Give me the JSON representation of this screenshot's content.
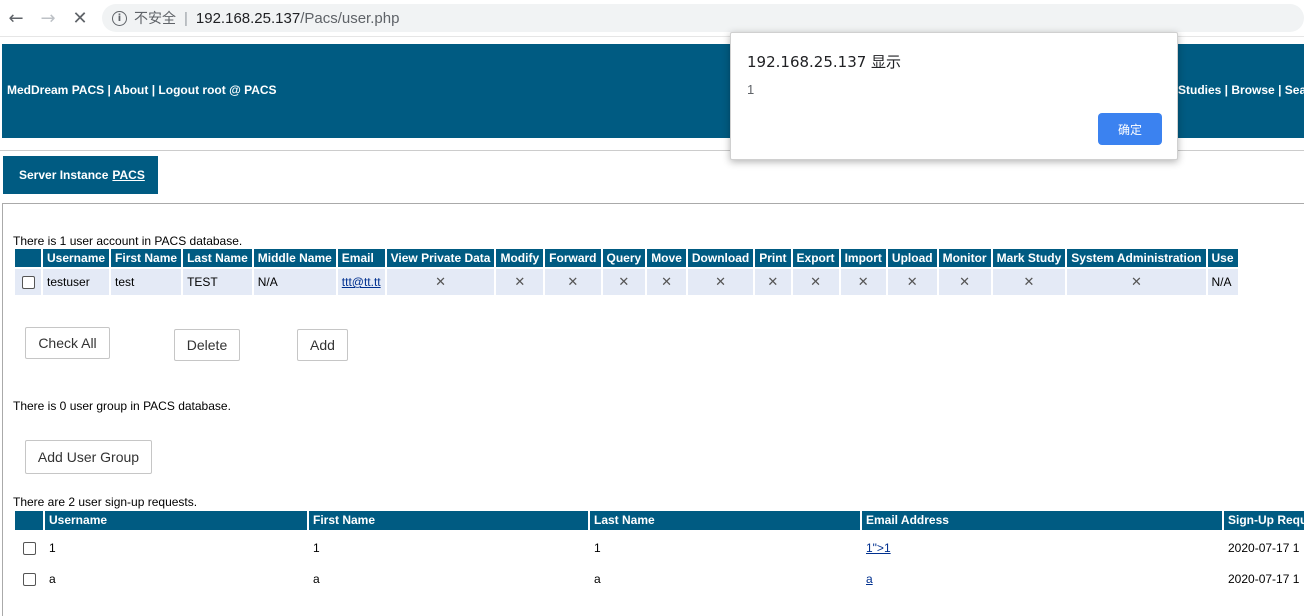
{
  "browser": {
    "back_glyph": "←",
    "forward_glyph": "→",
    "stop_glyph": "✕",
    "info_glyph": "i",
    "security_label": "不安全",
    "separator": "|",
    "url_host": "192.168.25.137",
    "url_path": "/Pacs/user.php"
  },
  "header": {
    "left_links": [
      "MedDream PACS",
      "About",
      "Logout root @ PACS"
    ],
    "right_links": [
      "Studies",
      "Browse",
      "Sea"
    ],
    "link_separator": " | "
  },
  "tab": {
    "prefix": "Server Instance",
    "name": "PACS"
  },
  "users": {
    "caption": "There is 1 user account in PACS database.",
    "columns": [
      "Username",
      "First Name",
      "Last Name",
      "Middle Name",
      "Email",
      "View Private Data",
      "Modify",
      "Forward",
      "Query",
      "Move",
      "Download",
      "Print",
      "Export",
      "Import",
      "Upload",
      "Monitor",
      "Mark Study",
      "System Administration",
      "Use"
    ],
    "rows": [
      {
        "username": "testuser",
        "first_name": "test",
        "last_name": "TEST",
        "middle_name": "N/A",
        "email": "ttt@tt.tt",
        "permissions": [
          "✕",
          "✕",
          "✕",
          "✕",
          "✕",
          "✕",
          "✕",
          "✕",
          "✕",
          "✕",
          "✕",
          "✕",
          "✕"
        ],
        "last": "N/A"
      }
    ]
  },
  "buttons": {
    "check_all": "Check All",
    "delete": "Delete",
    "add": "Add",
    "add_group": "Add User Group"
  },
  "groups": {
    "caption": "There is 0 user group in PACS database."
  },
  "signups": {
    "caption": "There are 2 user sign-up requests.",
    "columns": [
      "Username",
      "First Name",
      "Last Name",
      "Email Address",
      "Sign-Up Requ"
    ],
    "rows": [
      {
        "username": "1",
        "first_name": "1",
        "last_name": "1",
        "email": "1\">1",
        "date": "2020-07-17 1"
      },
      {
        "username": "a",
        "first_name": "a",
        "last_name": "a",
        "email": "a",
        "date": "2020-07-17 1"
      }
    ]
  },
  "dialog": {
    "title": "192.168.25.137 显示",
    "message": "1",
    "ok_label": "确定"
  },
  "colors": {
    "brand": "#005b82",
    "row_shade": "#e4eaf6",
    "dialog_button": "#3b82f0"
  }
}
